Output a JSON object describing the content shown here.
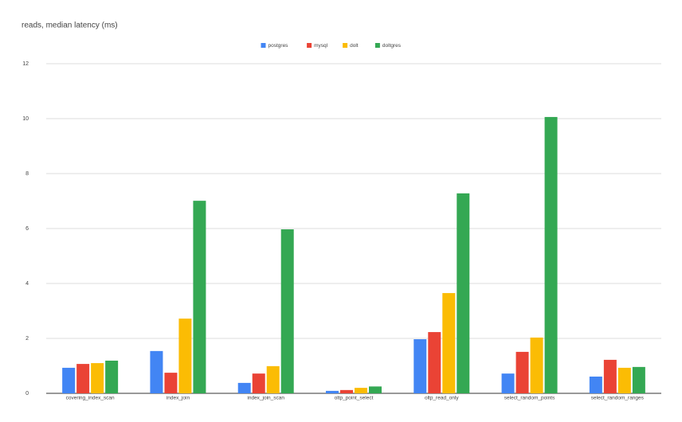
{
  "chart_data": {
    "type": "bar",
    "title": "reads, median latency (ms)",
    "categories": [
      "covering_index_scan",
      "index_join",
      "index_join_scan",
      "oltp_point_select",
      "oltp_read_only",
      "select_random_points",
      "select_random_ranges"
    ],
    "series": [
      {
        "name": "postgres",
        "color": "#4285f4",
        "values": [
          0.93,
          1.54,
          0.38,
          0.09,
          1.97,
          0.72,
          0.61
        ]
      },
      {
        "name": "mysql",
        "color": "#ea4335",
        "values": [
          1.07,
          0.75,
          0.72,
          0.12,
          2.23,
          1.51,
          1.22
        ]
      },
      {
        "name": "dolt",
        "color": "#fbbc04",
        "values": [
          1.1,
          2.72,
          0.99,
          0.2,
          3.65,
          2.03,
          0.93
        ]
      },
      {
        "name": "doltgres",
        "color": "#34a853",
        "values": [
          1.19,
          7.01,
          5.97,
          0.25,
          7.28,
          10.06,
          0.96
        ]
      }
    ],
    "ylim": [
      0,
      12
    ],
    "yticks": [
      0,
      2,
      4,
      6,
      8,
      10,
      12
    ],
    "grid": true,
    "legend": "top"
  }
}
